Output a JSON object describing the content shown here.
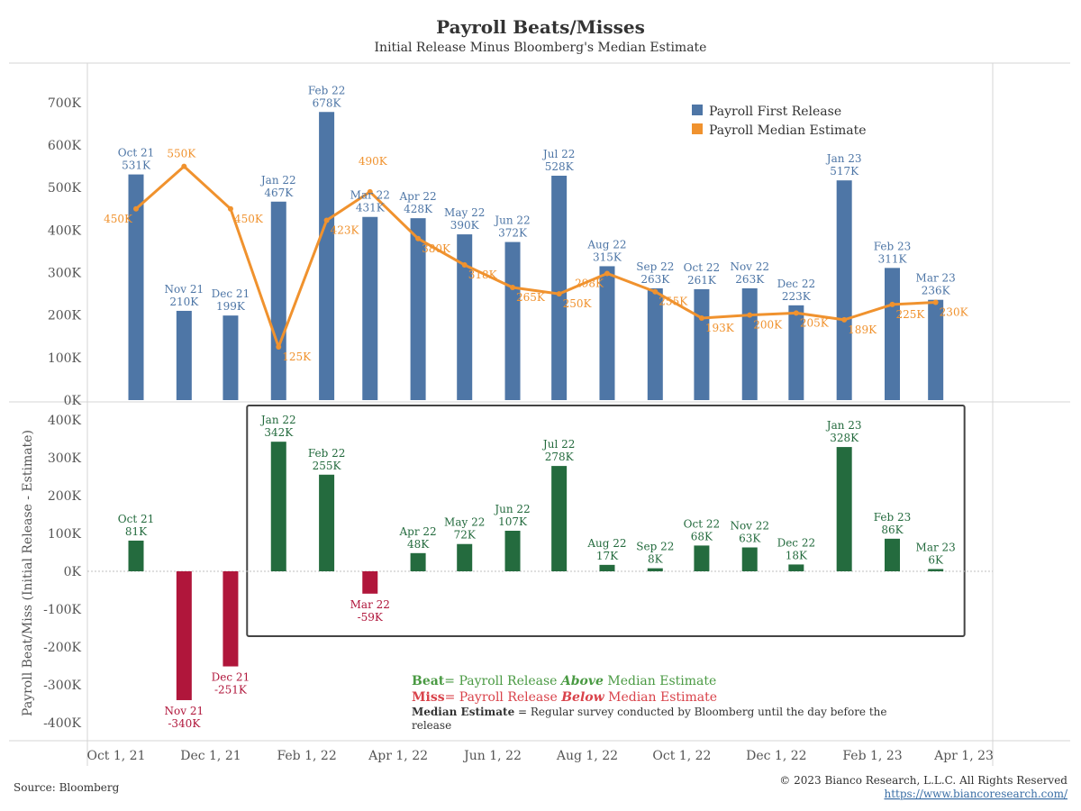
{
  "header": {
    "title": "Payroll Beats/Misses",
    "subtitle": "Initial Release Minus Bloomberg's Median Estimate"
  },
  "footer": {
    "source": "Source: Bloomberg",
    "copyright": "© 2023 Bianco Research, L.L.C. All Rights Reserved",
    "url": "https://www.biancoresearch.com/"
  },
  "colors": {
    "release_bar": "#4e76a6",
    "estimate_line": "#f0922e",
    "beat_bar": "#246b3e",
    "miss_bar": "#b0163b",
    "beat_text": "#4a9a43",
    "miss_text": "#d9424a"
  },
  "x_axis": {
    "tick_labels": [
      "Oct 1, 21",
      "Dec 1, 21",
      "Feb 1, 22",
      "Apr 1, 22",
      "Jun 1, 22",
      "Aug 1, 22",
      "Oct 1, 22",
      "Dec 1, 22",
      "Feb 1, 23",
      "Apr 1, 23"
    ],
    "tick_dates": [
      "2021-10-01",
      "2021-12-01",
      "2022-02-01",
      "2022-04-01",
      "2022-06-01",
      "2022-08-01",
      "2022-10-01",
      "2022-12-01",
      "2023-02-01",
      "2023-04-01"
    ]
  },
  "legend": {
    "release_label": "Payroll First Release",
    "estimate_label": "Payroll Median Estimate"
  },
  "notes": {
    "beat_word": "Beat",
    "beat_pre": "= Payroll Release ",
    "beat_emph": "Above",
    "beat_post": " Median Estimate",
    "miss_word": "Miss",
    "miss_pre": "= Payroll Release ",
    "miss_emph": "Below",
    "miss_post": " Median Estimate",
    "median_word": "Median Estimate",
    "median_line1": " = Regular survey conducted by Bloomberg until the day before the",
    "median_line2": "release"
  },
  "chart_data": [
    {
      "type": "bar",
      "x": [
        "2021-10-01",
        "2021-11-01",
        "2021-12-01",
        "2022-01-01",
        "2022-02-01",
        "2022-03-01",
        "2022-04-01",
        "2022-05-01",
        "2022-06-01",
        "2022-07-01",
        "2022-08-01",
        "2022-09-01",
        "2022-10-01",
        "2022-11-01",
        "2022-12-01",
        "2023-01-01",
        "2023-02-01",
        "2023-03-01"
      ],
      "month_labels": [
        "Oct 21",
        "Nov 21",
        "Dec 21",
        "Jan 22",
        "Feb 22",
        "Mar 22",
        "Apr 22",
        "May 22",
        "Jun 22",
        "Jul 22",
        "Aug 22",
        "Sep 22",
        "Oct 22",
        "Nov 22",
        "Dec 22",
        "Jan 23",
        "Feb 23",
        "Mar 23"
      ],
      "series": [
        {
          "name": "Payroll First Release",
          "type": "bar",
          "values": [
            531,
            210,
            199,
            467,
            678,
            431,
            428,
            390,
            372,
            528,
            315,
            263,
            261,
            263,
            223,
            517,
            311,
            236
          ],
          "value_labels": [
            "531K",
            "210K",
            "199K",
            "467K",
            "678K",
            "431K",
            "428K",
            "390K",
            "372K",
            "528K",
            "315K",
            "263K",
            "261K",
            "263K",
            "223K",
            "517K",
            "311K",
            "236K"
          ]
        },
        {
          "name": "Payroll Median Estimate",
          "type": "line",
          "values": [
            450,
            550,
            450,
            125,
            423,
            490,
            380,
            318,
            265,
            250,
            298,
            255,
            193,
            200,
            205,
            189,
            225,
            230
          ],
          "value_labels": [
            "450K",
            "550K",
            "450K",
            "125K",
            "423K",
            "490K",
            "380K",
            "318K",
            "265K",
            "250K",
            "298K",
            "255K",
            "193K",
            "200K",
            "205K",
            "189K",
            "225K",
            "230K"
          ]
        }
      ],
      "ylim": [
        0,
        760
      ],
      "y_ticks": [
        0,
        100,
        200,
        300,
        400,
        500,
        600,
        700
      ],
      "y_tick_labels": [
        "0K",
        "100K",
        "200K",
        "300K",
        "400K",
        "500K",
        "600K",
        "700K"
      ],
      "legend_position": "top-right"
    },
    {
      "type": "bar",
      "x": [
        "2021-10-01",
        "2021-11-01",
        "2021-12-01",
        "2022-01-01",
        "2022-02-01",
        "2022-03-01",
        "2022-04-01",
        "2022-05-01",
        "2022-06-01",
        "2022-07-01",
        "2022-08-01",
        "2022-09-01",
        "2022-10-01",
        "2022-11-01",
        "2022-12-01",
        "2023-01-01",
        "2023-02-01",
        "2023-03-01"
      ],
      "month_labels": [
        "Oct 21",
        "Nov 21",
        "Dec 21",
        "Jan 22",
        "Feb 22",
        "Mar 22",
        "Apr 22",
        "May 22",
        "Jun 22",
        "Jul 22",
        "Aug 22",
        "Sep 22",
        "Oct 22",
        "Nov 22",
        "Dec 22",
        "Jan 23",
        "Feb 23",
        "Mar 23"
      ],
      "series": [
        {
          "values": [
            81,
            -340,
            -251,
            342,
            255,
            -59,
            48,
            72,
            107,
            278,
            17,
            8,
            68,
            63,
            18,
            328,
            86,
            6
          ],
          "value_labels": [
            "81K",
            "-340K",
            "-251K",
            "342K",
            "255K",
            "-59K",
            "48K",
            "72K",
            "107K",
            "278K",
            "17K",
            "8K",
            "68K",
            "63K",
            "18K",
            "328K",
            "86K",
            "6K"
          ]
        }
      ],
      "ylabel": "Payroll Beat/Miss (Initial Release - Estimate)",
      "ylim": [
        -420,
        430
      ],
      "y_ticks": [
        -400,
        -300,
        -200,
        -100,
        0,
        100,
        200,
        300,
        400
      ],
      "y_tick_labels": [
        "-400K",
        "-300K",
        "-200K",
        "-100K",
        "0K",
        "100K",
        "200K",
        "300K",
        "400K"
      ],
      "highlight_range": [
        "2022-01-01",
        "2023-03-01"
      ]
    }
  ]
}
